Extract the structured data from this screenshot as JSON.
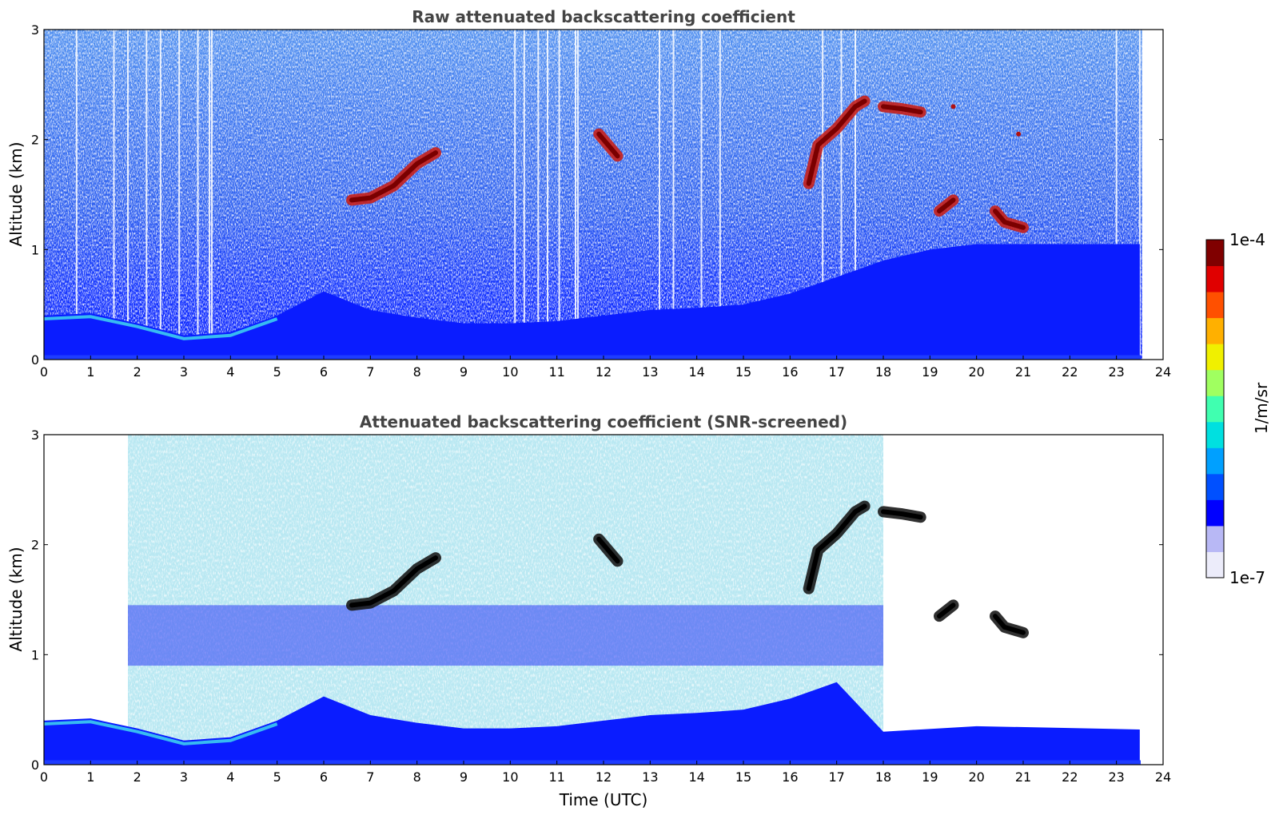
{
  "chart_data": [
    {
      "type": "heatmap",
      "title": "Raw attenuated backscattering coefficient",
      "xlabel": "",
      "ylabel": "Altitude (km)",
      "xlim": [
        0,
        24
      ],
      "ylim": [
        0,
        3
      ],
      "xticks": [
        "0",
        "1",
        "2",
        "3",
        "4",
        "5",
        "6",
        "7",
        "8",
        "9",
        "10",
        "11",
        "12",
        "13",
        "14",
        "15",
        "16",
        "17",
        "18",
        "19",
        "20",
        "21",
        "22",
        "23",
        "24"
      ],
      "yticks": [
        "0",
        "1",
        "2",
        "3"
      ],
      "grid": false,
      "features": [
        {
          "kind": "boundary-layer",
          "points": [
            [
              0,
              0.4
            ],
            [
              1,
              0.42
            ],
            [
              2,
              0.33
            ],
            [
              3,
              0.22
            ],
            [
              4,
              0.25
            ],
            [
              5,
              0.4
            ],
            [
              6,
              0.62
            ],
            [
              7,
              0.45
            ],
            [
              8,
              0.38
            ],
            [
              9,
              0.33
            ],
            [
              10,
              0.33
            ],
            [
              11,
              0.35
            ],
            [
              12,
              0.4
            ],
            [
              13,
              0.45
            ],
            [
              14,
              0.47
            ],
            [
              15,
              0.5
            ],
            [
              16,
              0.6
            ],
            [
              17,
              0.75
            ],
            [
              18,
              0.9
            ],
            [
              19,
              1.0
            ],
            [
              20,
              1.05
            ],
            [
              21,
              1.05
            ],
            [
              22,
              1.05
            ],
            [
              23,
              1.05
            ],
            [
              23.5,
              1.05
            ]
          ]
        },
        {
          "kind": "cloud",
          "points": [
            [
              6.6,
              1.45
            ],
            [
              7.0,
              1.47
            ],
            [
              7.5,
              1.58
            ],
            [
              8.0,
              1.78
            ],
            [
              8.4,
              1.88
            ]
          ]
        },
        {
          "kind": "cloud",
          "points": [
            [
              11.9,
              2.05
            ],
            [
              12.1,
              1.95
            ],
            [
              12.3,
              1.85
            ]
          ]
        },
        {
          "kind": "cloud",
          "points": [
            [
              16.4,
              1.6
            ],
            [
              16.6,
              1.95
            ],
            [
              17.0,
              2.1
            ],
            [
              17.4,
              2.3
            ],
            [
              17.6,
              2.35
            ]
          ]
        },
        {
          "kind": "cloud",
          "points": [
            [
              18.0,
              2.3
            ],
            [
              18.4,
              2.28
            ],
            [
              18.8,
              2.25
            ]
          ]
        },
        {
          "kind": "cloud",
          "points": [
            [
              19.2,
              1.35
            ],
            [
              19.5,
              1.45
            ]
          ]
        },
        {
          "kind": "cloud",
          "points": [
            [
              20.4,
              1.35
            ],
            [
              20.6,
              1.25
            ],
            [
              21.0,
              1.2
            ]
          ]
        },
        {
          "kind": "cloud",
          "points": [
            [
              19.5,
              2.3
            ]
          ]
        },
        {
          "kind": "cloud",
          "points": [
            [
              20.9,
              2.05
            ]
          ]
        }
      ],
      "data_gaps_hours": [
        0.7,
        1.5,
        1.8,
        2.2,
        2.5,
        2.9,
        3.3,
        3.55,
        3.6,
        10.1,
        10.3,
        10.6,
        10.8,
        11.05,
        11.4,
        11.45,
        13.2,
        13.5,
        14.1,
        14.5,
        16.7,
        17.1,
        17.4,
        23.0,
        23.5
      ]
    },
    {
      "type": "heatmap",
      "title": "Attenuated backscattering coefficient (SNR-screened)",
      "xlabel": "Time (UTC)",
      "ylabel": "Altitude (km)",
      "xlim": [
        0,
        24
      ],
      "ylim": [
        0,
        3
      ],
      "xticks": [
        "0",
        "1",
        "2",
        "3",
        "4",
        "5",
        "6",
        "7",
        "8",
        "9",
        "10",
        "11",
        "12",
        "13",
        "14",
        "15",
        "16",
        "17",
        "18",
        "19",
        "20",
        "21",
        "22",
        "23",
        "24"
      ],
      "yticks": [
        "0",
        "1",
        "2",
        "3"
      ],
      "grid": false,
      "features": [
        {
          "kind": "boundary-layer",
          "points": [
            [
              0,
              0.4
            ],
            [
              1,
              0.42
            ],
            [
              2,
              0.33
            ],
            [
              3,
              0.22
            ],
            [
              4,
              0.25
            ],
            [
              5,
              0.4
            ],
            [
              6,
              0.62
            ],
            [
              7,
              0.45
            ],
            [
              8,
              0.38
            ],
            [
              9,
              0.33
            ],
            [
              10,
              0.33
            ],
            [
              11,
              0.35
            ],
            [
              12,
              0.4
            ],
            [
              13,
              0.45
            ],
            [
              14,
              0.47
            ],
            [
              15,
              0.5
            ],
            [
              16,
              0.6
            ],
            [
              17,
              0.75
            ],
            [
              18,
              0.3
            ],
            [
              20,
              0.35
            ],
            [
              23.5,
              0.32
            ]
          ]
        },
        {
          "kind": "cloud",
          "points": [
            [
              6.6,
              1.45
            ],
            [
              7.0,
              1.47
            ],
            [
              7.5,
              1.58
            ],
            [
              8.0,
              1.78
            ],
            [
              8.4,
              1.88
            ]
          ]
        },
        {
          "kind": "cloud",
          "points": [
            [
              11.9,
              2.05
            ],
            [
              12.1,
              1.95
            ],
            [
              12.3,
              1.85
            ]
          ]
        },
        {
          "kind": "cloud",
          "points": [
            [
              16.4,
              1.6
            ],
            [
              16.6,
              1.95
            ],
            [
              17.0,
              2.1
            ],
            [
              17.4,
              2.3
            ],
            [
              17.6,
              2.35
            ]
          ]
        },
        {
          "kind": "cloud",
          "points": [
            [
              18.0,
              2.3
            ],
            [
              18.4,
              2.28
            ],
            [
              18.8,
              2.25
            ]
          ]
        },
        {
          "kind": "cloud",
          "points": [
            [
              19.2,
              1.35
            ],
            [
              19.5,
              1.45
            ]
          ]
        },
        {
          "kind": "cloud",
          "points": [
            [
              20.4,
              1.35
            ],
            [
              20.6,
              1.25
            ],
            [
              21.0,
              1.2
            ]
          ]
        }
      ],
      "screened_regions_hours": [
        [
          0,
          1.8
        ],
        [
          18,
          24
        ]
      ]
    }
  ],
  "colorbar": {
    "label": "1/m/sr",
    "max_label": "1e-4",
    "min_label": "1e-7",
    "scale": "log",
    "range": [
      1e-07,
      0.0001
    ],
    "colors": [
      "#ececfa",
      "#b8b8f5",
      "#0000ff",
      "#0050ff",
      "#00a0ff",
      "#00e0e0",
      "#40ffb0",
      "#a0ff60",
      "#f0f000",
      "#ffb000",
      "#ff5000",
      "#e00000",
      "#800000"
    ]
  }
}
